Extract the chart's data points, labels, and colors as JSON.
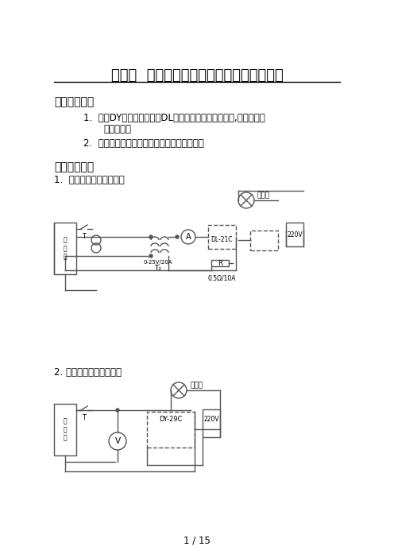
{
  "title": "实验一  电磁型电流继电器和电压继电器实验",
  "section1_heading": "一、实验目的",
  "item1": "熟悉DY型电压继电器和DL型电流继电器的实际结构,工作原理、",
  "item1b": "基本特性；",
  "item2": "学习动作电流、动作电压参数的整定方法。",
  "section2_heading": "二、实验电路",
  "circuit1_label": "1.  过流继电器实验接线图",
  "circuit2_label": "2. 低压继电器实验接线图",
  "page_label": "1 / 15",
  "bg_color": "#ffffff",
  "text_color": "#000000",
  "line_color": "#555555"
}
